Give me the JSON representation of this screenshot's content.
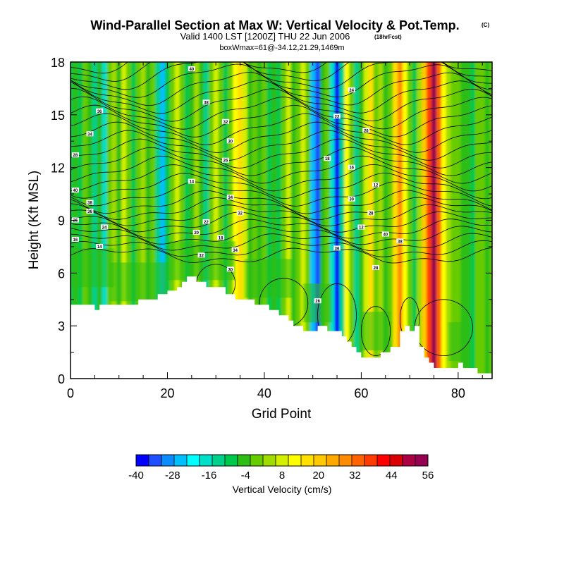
{
  "chart_data": {
    "type": "heatmap",
    "title": "Wind-Parallel Section at Max W: Vertical Velocity & Pot.Temp.",
    "title_mark": "(C)",
    "subtitle": "Valid 1400 LST [1200Z] THU 22 Jun 2006",
    "subtitle_note": "(18hrFcst)",
    "subtitle2": "boxWmax=61@-34.12,21.29,1469m",
    "xlabel": "Grid Point",
    "ylabel": "Height (Kft MSL)",
    "xlim": [
      0,
      87
    ],
    "ylim": [
      0,
      18
    ],
    "xticks": [
      0,
      20,
      40,
      60,
      80
    ],
    "yticks": [
      0,
      3,
      6,
      9,
      12,
      15,
      18
    ],
    "colorbar": {
      "label": "Vertical Velocity (cm/s)",
      "min": -40,
      "max": 56,
      "step": 4,
      "tick_labels": [
        "-40",
        "-28",
        "-16",
        "-4",
        "8",
        "20",
        "32",
        "44",
        "56"
      ],
      "colors": [
        "#0000ff",
        "#1e50ff",
        "#0a8cff",
        "#00bfff",
        "#00ffff",
        "#00e0c8",
        "#00d08a",
        "#00c84a",
        "#2cbe14",
        "#66cc00",
        "#a0dc00",
        "#d2f000",
        "#ffff00",
        "#ffe000",
        "#ffc800",
        "#ffa800",
        "#ff8c00",
        "#ff6400",
        "#ff3c00",
        "#ff0000",
        "#d80000",
        "#aa0044",
        "#960050"
      ]
    },
    "terrain": [
      [
        0,
        4.2
      ],
      [
        5,
        4.2
      ],
      [
        5,
        3.9
      ],
      [
        6,
        3.9
      ],
      [
        6,
        4.2
      ],
      [
        14,
        4.2
      ],
      [
        14,
        4.5
      ],
      [
        18,
        4.5
      ],
      [
        18,
        4.8
      ],
      [
        20,
        4.8
      ],
      [
        20,
        5.0
      ],
      [
        22,
        5.0
      ],
      [
        22,
        5.2
      ],
      [
        23,
        5.2
      ],
      [
        23,
        5.5
      ],
      [
        24,
        5.5
      ],
      [
        24,
        5.8
      ],
      [
        26,
        5.8
      ],
      [
        26,
        5.5
      ],
      [
        28,
        5.5
      ],
      [
        28,
        5.2
      ],
      [
        32,
        5.2
      ],
      [
        32,
        4.8
      ],
      [
        34,
        4.8
      ],
      [
        34,
        4.5
      ],
      [
        38,
        4.5
      ],
      [
        38,
        4.2
      ],
      [
        41,
        4.2
      ],
      [
        41,
        3.9
      ],
      [
        43,
        3.9
      ],
      [
        43,
        3.6
      ],
      [
        45,
        3.6
      ],
      [
        45,
        3.3
      ],
      [
        46,
        3.3
      ],
      [
        46,
        3.0
      ],
      [
        48,
        3.0
      ],
      [
        48,
        2.7
      ],
      [
        51,
        2.7
      ],
      [
        51,
        3.0
      ],
      [
        53,
        3.0
      ],
      [
        53,
        2.7
      ],
      [
        56,
        2.7
      ],
      [
        56,
        2.4
      ],
      [
        57,
        2.4
      ],
      [
        57,
        2.1
      ],
      [
        58,
        2.1
      ],
      [
        58,
        1.8
      ],
      [
        59,
        1.8
      ],
      [
        59,
        1.5
      ],
      [
        60,
        1.5
      ],
      [
        60,
        1.2
      ],
      [
        64,
        1.2
      ],
      [
        64,
        1.5
      ],
      [
        66,
        1.5
      ],
      [
        66,
        1.8
      ],
      [
        68,
        1.8
      ],
      [
        68,
        2.7
      ],
      [
        69,
        2.7
      ],
      [
        69,
        3.0
      ],
      [
        70,
        3.0
      ],
      [
        70,
        2.7
      ],
      [
        71,
        2.7
      ],
      [
        71,
        3.0
      ],
      [
        72,
        3.0
      ],
      [
        72,
        1.8
      ],
      [
        73,
        1.8
      ],
      [
        73,
        1.2
      ],
      [
        74,
        1.2
      ],
      [
        74,
        0.9
      ],
      [
        75,
        0.9
      ],
      [
        75,
        0.6
      ],
      [
        80,
        0.6
      ],
      [
        80,
        0.9
      ],
      [
        81,
        0.9
      ],
      [
        81,
        0.6
      ],
      [
        84,
        0.6
      ],
      [
        84,
        0.3
      ],
      [
        87,
        0.3
      ]
    ],
    "w_columns": [
      [
        0,
        -10
      ],
      [
        1,
        -6
      ],
      [
        2,
        -12
      ],
      [
        3,
        -4
      ],
      [
        4,
        -8
      ],
      [
        5,
        -14
      ],
      [
        6,
        -6
      ],
      [
        7,
        -18
      ],
      [
        8,
        -4
      ],
      [
        9,
        2
      ],
      [
        10,
        -6
      ],
      [
        11,
        4
      ],
      [
        12,
        -2
      ],
      [
        13,
        -10
      ],
      [
        14,
        -4
      ],
      [
        15,
        2
      ],
      [
        16,
        -8
      ],
      [
        17,
        -4
      ],
      [
        18,
        -16
      ],
      [
        19,
        -28
      ],
      [
        20,
        -10
      ],
      [
        21,
        -2
      ],
      [
        22,
        4
      ],
      [
        23,
        -4
      ],
      [
        24,
        -12
      ],
      [
        25,
        -6
      ],
      [
        26,
        2
      ],
      [
        27,
        -8
      ],
      [
        28,
        -14
      ],
      [
        29,
        -4
      ],
      [
        30,
        6
      ],
      [
        31,
        -2
      ],
      [
        32,
        -10
      ],
      [
        33,
        -4
      ],
      [
        34,
        8
      ],
      [
        35,
        12
      ],
      [
        36,
        4
      ],
      [
        37,
        -6
      ],
      [
        38,
        -2
      ],
      [
        39,
        -8
      ],
      [
        40,
        -4
      ],
      [
        41,
        -10
      ],
      [
        42,
        -6
      ],
      [
        43,
        -12
      ],
      [
        44,
        -4
      ],
      [
        45,
        4
      ],
      [
        46,
        -8
      ],
      [
        47,
        -2
      ],
      [
        48,
        6
      ],
      [
        49,
        -2
      ],
      [
        50,
        -26
      ],
      [
        51,
        -34
      ],
      [
        52,
        -8
      ],
      [
        53,
        -4
      ],
      [
        54,
        -20
      ],
      [
        55,
        -40
      ],
      [
        56,
        -16
      ],
      [
        57,
        10
      ],
      [
        58,
        -2
      ],
      [
        59,
        -14
      ],
      [
        60,
        -8
      ],
      [
        61,
        4
      ],
      [
        62,
        12
      ],
      [
        63,
        -4
      ],
      [
        64,
        2
      ],
      [
        65,
        -8
      ],
      [
        66,
        -2
      ],
      [
        67,
        14
      ],
      [
        68,
        24
      ],
      [
        69,
        10
      ],
      [
        70,
        -4
      ],
      [
        71,
        -10
      ],
      [
        72,
        2
      ],
      [
        73,
        16
      ],
      [
        74,
        34
      ],
      [
        75,
        52
      ],
      [
        76,
        30
      ],
      [
        77,
        10
      ],
      [
        78,
        2
      ],
      [
        79,
        -4
      ],
      [
        80,
        -2
      ],
      [
        81,
        -6
      ],
      [
        82,
        -8
      ],
      [
        83,
        -12
      ],
      [
        84,
        -4
      ],
      [
        85,
        -2
      ],
      [
        86,
        -6
      ],
      [
        87,
        -4
      ]
    ],
    "theta_contour_labels": [
      "40",
      "38",
      "36",
      "34",
      "32",
      "30",
      "28",
      "26",
      "24",
      "22",
      "20",
      "18",
      "16",
      "14",
      "12"
    ]
  }
}
